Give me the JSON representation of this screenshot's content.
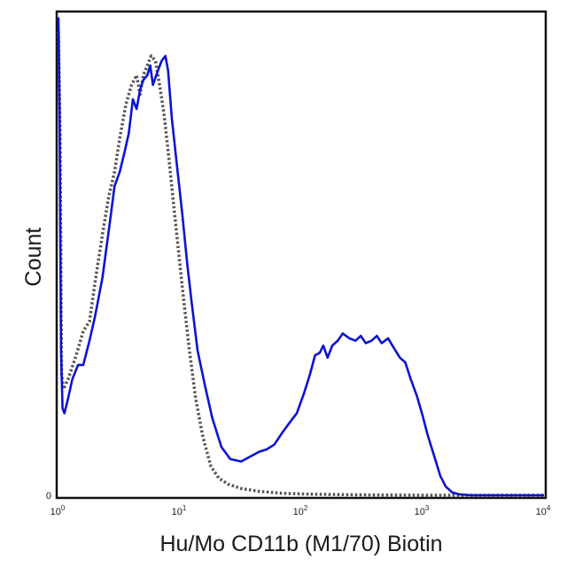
{
  "chart_data": {
    "type": "line",
    "xlabel": "Hu/Mo CD11b (M1/70) Biotin",
    "ylabel": "Count",
    "x_scale": "log",
    "xlim": [
      1,
      10000
    ],
    "ylim": [
      0,
      100
    ],
    "x_ticks": [
      {
        "value": 1,
        "base": "10",
        "exp": "0"
      },
      {
        "value": 10,
        "base": "10",
        "exp": "1"
      },
      {
        "value": 100,
        "base": "10",
        "exp": "2"
      },
      {
        "value": 1000,
        "base": "10",
        "exp": "3"
      },
      {
        "value": 10000,
        "base": "10",
        "exp": "4"
      }
    ],
    "y_ticks": [
      {
        "value": 0,
        "label": "0"
      }
    ],
    "grid": false,
    "legend": "none",
    "series": [
      {
        "style": "dotted",
        "color": "#555555",
        "points": [
          [
            1.0,
            96
          ],
          [
            1.03,
            75
          ],
          [
            1.06,
            25
          ],
          [
            1.1,
            22
          ],
          [
            1.2,
            24
          ],
          [
            1.4,
            29
          ],
          [
            1.6,
            34
          ],
          [
            1.8,
            36
          ],
          [
            2.0,
            44
          ],
          [
            2.3,
            54
          ],
          [
            2.6,
            62
          ],
          [
            2.9,
            67
          ],
          [
            3.2,
            74
          ],
          [
            3.6,
            81
          ],
          [
            4.0,
            85
          ],
          [
            4.4,
            87
          ],
          [
            4.7,
            83
          ],
          [
            5.0,
            87
          ],
          [
            5.4,
            89
          ],
          [
            5.8,
            91
          ],
          [
            6.3,
            90
          ],
          [
            6.8,
            85
          ],
          [
            7.4,
            79
          ],
          [
            8.1,
            70
          ],
          [
            8.9,
            60
          ],
          [
            9.8,
            50
          ],
          [
            10.8,
            40
          ],
          [
            12.0,
            30
          ],
          [
            13.5,
            20
          ],
          [
            15.5,
            12
          ],
          [
            18.0,
            6
          ],
          [
            21.0,
            3.5
          ],
          [
            25.0,
            2.3
          ],
          [
            32.0,
            1.4
          ],
          [
            45.0,
            0.8
          ],
          [
            70.0,
            0.4
          ],
          [
            130.0,
            0.2
          ],
          [
            300.0,
            0.1
          ],
          [
            1000.0,
            0
          ],
          [
            10000.0,
            0
          ]
        ]
      },
      {
        "style": "solid",
        "color": "#0a14d2",
        "points": [
          [
            1.0,
            99
          ],
          [
            1.02,
            80
          ],
          [
            1.05,
            30
          ],
          [
            1.08,
            18
          ],
          [
            1.12,
            17
          ],
          [
            1.2,
            20
          ],
          [
            1.3,
            24
          ],
          [
            1.45,
            27
          ],
          [
            1.6,
            27
          ],
          [
            1.8,
            32
          ],
          [
            2.0,
            37
          ],
          [
            2.3,
            45
          ],
          [
            2.6,
            55
          ],
          [
            2.9,
            64
          ],
          [
            3.2,
            67
          ],
          [
            3.5,
            71
          ],
          [
            3.8,
            75
          ],
          [
            4.1,
            82
          ],
          [
            4.4,
            80
          ],
          [
            4.7,
            84
          ],
          [
            5.0,
            86
          ],
          [
            5.4,
            87
          ],
          [
            5.7,
            89
          ],
          [
            6.0,
            85
          ],
          [
            6.6,
            88
          ],
          [
            7.1,
            90
          ],
          [
            7.6,
            91
          ],
          [
            8.0,
            88
          ],
          [
            8.6,
            78
          ],
          [
            9.5,
            68
          ],
          [
            10.5,
            58
          ],
          [
            11.5,
            48
          ],
          [
            12.5,
            40
          ],
          [
            14.0,
            30
          ],
          [
            16.0,
            23
          ],
          [
            18.5,
            16
          ],
          [
            22.0,
            10
          ],
          [
            26.0,
            7.5
          ],
          [
            32.0,
            7
          ],
          [
            38.0,
            8
          ],
          [
            45.0,
            9
          ],
          [
            52.0,
            9.5
          ],
          [
            60.0,
            10.5
          ],
          [
            70.0,
            13
          ],
          [
            80.0,
            15
          ],
          [
            92.0,
            17
          ],
          [
            105.0,
            21
          ],
          [
            118.0,
            25
          ],
          [
            130.0,
            29
          ],
          [
            142.0,
            29.5
          ],
          [
            152.0,
            31
          ],
          [
            165.0,
            28.5
          ],
          [
            180.0,
            31
          ],
          [
            200.0,
            32
          ],
          [
            220.0,
            33.5
          ],
          [
            250.0,
            32.5
          ],
          [
            280.0,
            32
          ],
          [
            310.0,
            33
          ],
          [
            340.0,
            31.5
          ],
          [
            380.0,
            32
          ],
          [
            420.0,
            33
          ],
          [
            460.0,
            31.5
          ],
          [
            520.0,
            32.5
          ],
          [
            580.0,
            30.5
          ],
          [
            650.0,
            28.5
          ],
          [
            720.0,
            27.5
          ],
          [
            800.0,
            24
          ],
          [
            900.0,
            20.5
          ],
          [
            1000.0,
            16.5
          ],
          [
            1100.0,
            12.5
          ],
          [
            1250.0,
            8
          ],
          [
            1400.0,
            4
          ],
          [
            1550.0,
            1.8
          ],
          [
            1750.0,
            0.6
          ],
          [
            2000.0,
            0.2
          ],
          [
            2500.0,
            0
          ],
          [
            10000.0,
            0
          ]
        ]
      }
    ]
  }
}
